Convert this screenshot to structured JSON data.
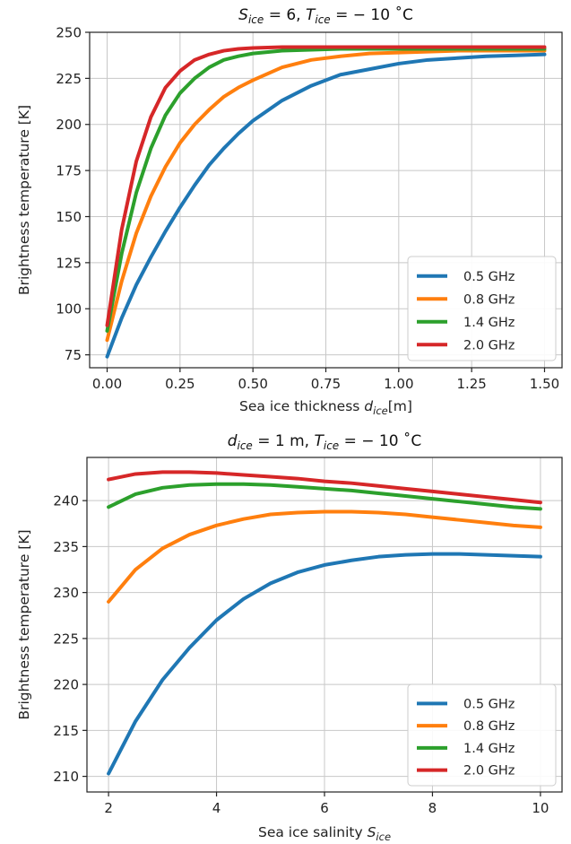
{
  "chart_data": [
    {
      "type": "line",
      "title_parts": {
        "s_sym": "S",
        "s_sub": "ice",
        "s_val": " = 6, ",
        "t_sym": "T",
        "t_sub": "ice",
        "t_val": " = − 10 ˚C"
      },
      "xlabel": "Sea ice thickness ",
      "xlabel_sym": "d",
      "xlabel_sub": "ice",
      "xlabel_unit": "[m]",
      "ylabel": "Brightness temperature [K]",
      "xlim": [
        -0.06,
        1.56
      ],
      "ylim": [
        68,
        250
      ],
      "xticks": [
        0.0,
        0.25,
        0.5,
        0.75,
        1.0,
        1.25,
        1.5
      ],
      "xtick_labels": [
        "0.00",
        "0.25",
        "0.50",
        "0.75",
        "1.00",
        "1.25",
        "1.50"
      ],
      "yticks": [
        75,
        100,
        125,
        150,
        175,
        200,
        225,
        250
      ],
      "ytick_labels": [
        "75",
        "100",
        "125",
        "150",
        "175",
        "200",
        "225",
        "250"
      ],
      "grid": true,
      "legend": "bottom-right",
      "series": [
        {
          "name": "0.5 GHz",
          "color": "#1f77b4",
          "x": [
            0,
            0.05,
            0.1,
            0.15,
            0.2,
            0.25,
            0.3,
            0.35,
            0.4,
            0.45,
            0.5,
            0.6,
            0.7,
            0.8,
            0.9,
            1.0,
            1.1,
            1.2,
            1.3,
            1.4,
            1.5
          ],
          "y": [
            74,
            95,
            113,
            128,
            142,
            155,
            167,
            178,
            187,
            195,
            202,
            213,
            221,
            227,
            230,
            233,
            235,
            236,
            237,
            237.5,
            238
          ]
        },
        {
          "name": "0.8 GHz",
          "color": "#ff7f0e",
          "x": [
            0,
            0.05,
            0.1,
            0.15,
            0.2,
            0.25,
            0.3,
            0.35,
            0.4,
            0.45,
            0.5,
            0.6,
            0.7,
            0.8,
            0.9,
            1.0,
            1.1,
            1.2,
            1.3,
            1.4,
            1.5
          ],
          "y": [
            83,
            115,
            141,
            161,
            177,
            190,
            200,
            208,
            215,
            220,
            224,
            231,
            235,
            237,
            238.5,
            239,
            239.5,
            240,
            240,
            240,
            240
          ]
        },
        {
          "name": "1.4 GHz",
          "color": "#2ca02c",
          "x": [
            0,
            0.05,
            0.1,
            0.15,
            0.2,
            0.25,
            0.3,
            0.35,
            0.4,
            0.45,
            0.5,
            0.6,
            0.7,
            0.8,
            0.9,
            1.0,
            1.1,
            1.2,
            1.3,
            1.4,
            1.5
          ],
          "y": [
            88,
            130,
            163,
            187,
            205,
            217,
            225,
            231,
            235,
            237,
            238.5,
            240,
            240.5,
            241,
            241,
            241,
            241,
            241,
            241,
            241,
            241
          ]
        },
        {
          "name": "2.0 GHz",
          "color": "#d62728",
          "x": [
            0,
            0.05,
            0.1,
            0.15,
            0.2,
            0.25,
            0.3,
            0.35,
            0.4,
            0.45,
            0.5,
            0.6,
            0.7,
            0.8,
            0.9,
            1.0,
            1.1,
            1.2,
            1.3,
            1.4,
            1.5
          ],
          "y": [
            91,
            143,
            180,
            204,
            220,
            229,
            235,
            238,
            240,
            241,
            241.5,
            242,
            242,
            242,
            242,
            242,
            242,
            242,
            242,
            242,
            242
          ]
        }
      ]
    },
    {
      "type": "line",
      "title_parts": {
        "s_sym": "d",
        "s_sub": "ice",
        "s_val": " = 1 m, ",
        "t_sym": "T",
        "t_sub": "ice",
        "t_val": " = − 10 ˚C"
      },
      "xlabel": "Sea ice salinity ",
      "xlabel_sym": "S",
      "xlabel_sub": "ice",
      "xlabel_unit": "",
      "ylabel": "Brightness temperature [K]",
      "xlim": [
        1.6,
        10.4
      ],
      "ylim": [
        208.3,
        244.7
      ],
      "xticks": [
        2,
        4,
        6,
        8,
        10
      ],
      "xtick_labels": [
        "2",
        "4",
        "6",
        "8",
        "10"
      ],
      "yticks": [
        210,
        215,
        220,
        225,
        230,
        235,
        240
      ],
      "ytick_labels": [
        "210",
        "215",
        "220",
        "225",
        "230",
        "235",
        "240"
      ],
      "grid": true,
      "legend": "bottom-right",
      "series": [
        {
          "name": "0.5 GHz",
          "color": "#1f77b4",
          "x": [
            2,
            2.5,
            3,
            3.5,
            4,
            4.5,
            5,
            5.5,
            6,
            6.5,
            7,
            7.5,
            8,
            8.5,
            9,
            9.5,
            10
          ],
          "y": [
            210.3,
            216,
            220.5,
            224,
            227,
            229.3,
            231,
            232.2,
            233,
            233.5,
            233.9,
            234.1,
            234.2,
            234.2,
            234.1,
            234,
            233.9
          ]
        },
        {
          "name": "0.8 GHz",
          "color": "#ff7f0e",
          "x": [
            2,
            2.5,
            3,
            3.5,
            4,
            4.5,
            5,
            5.5,
            6,
            6.5,
            7,
            7.5,
            8,
            8.5,
            9,
            9.5,
            10
          ],
          "y": [
            229,
            232.5,
            234.8,
            236.3,
            237.3,
            238,
            238.5,
            238.7,
            238.8,
            238.8,
            238.7,
            238.5,
            238.2,
            237.9,
            237.6,
            237.3,
            237.1
          ]
        },
        {
          "name": "1.4 GHz",
          "color": "#2ca02c",
          "x": [
            2,
            2.5,
            3,
            3.5,
            4,
            4.5,
            5,
            5.5,
            6,
            6.5,
            7,
            7.5,
            8,
            8.5,
            9,
            9.5,
            10
          ],
          "y": [
            239.3,
            240.7,
            241.4,
            241.7,
            241.8,
            241.8,
            241.7,
            241.5,
            241.3,
            241.1,
            240.8,
            240.5,
            240.2,
            239.9,
            239.6,
            239.3,
            239.1
          ]
        },
        {
          "name": "2.0 GHz",
          "color": "#d62728",
          "x": [
            2,
            2.5,
            3,
            3.5,
            4,
            4.5,
            5,
            5.5,
            6,
            6.5,
            7,
            7.5,
            8,
            8.5,
            9,
            9.5,
            10
          ],
          "y": [
            242.3,
            242.9,
            243.1,
            243.1,
            243,
            242.8,
            242.6,
            242.4,
            242.1,
            241.9,
            241.6,
            241.3,
            241,
            240.7,
            240.4,
            240.1,
            239.8
          ]
        }
      ]
    }
  ]
}
